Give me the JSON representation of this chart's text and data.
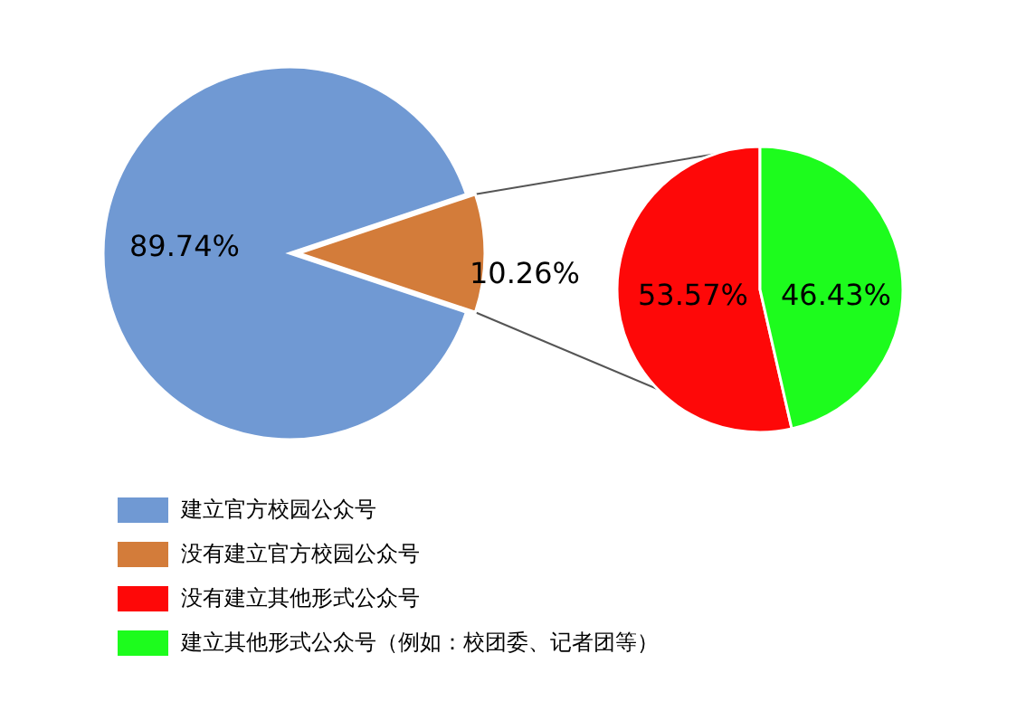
{
  "chart_data": [
    {
      "type": "pie",
      "categories": [
        "建立官方校园公众号",
        "没有建立官方校园公众号"
      ],
      "values": [
        89.74,
        10.26
      ],
      "colors": [
        "#7099d3",
        "#d37c3a"
      ],
      "value_labels": [
        "89.74%",
        "10.26%"
      ],
      "legend": "bottom"
    },
    {
      "type": "pie",
      "categories": [
        "没有建立其他形式公众号",
        "建立其他形式公众号（例如：校团委、记者团等）"
      ],
      "values": [
        53.57,
        46.43
      ],
      "colors": [
        "#fe0808",
        "#1dfc1d"
      ],
      "value_labels": [
        "53.57%",
        "46.43%"
      ],
      "legend": "bottom"
    }
  ]
}
